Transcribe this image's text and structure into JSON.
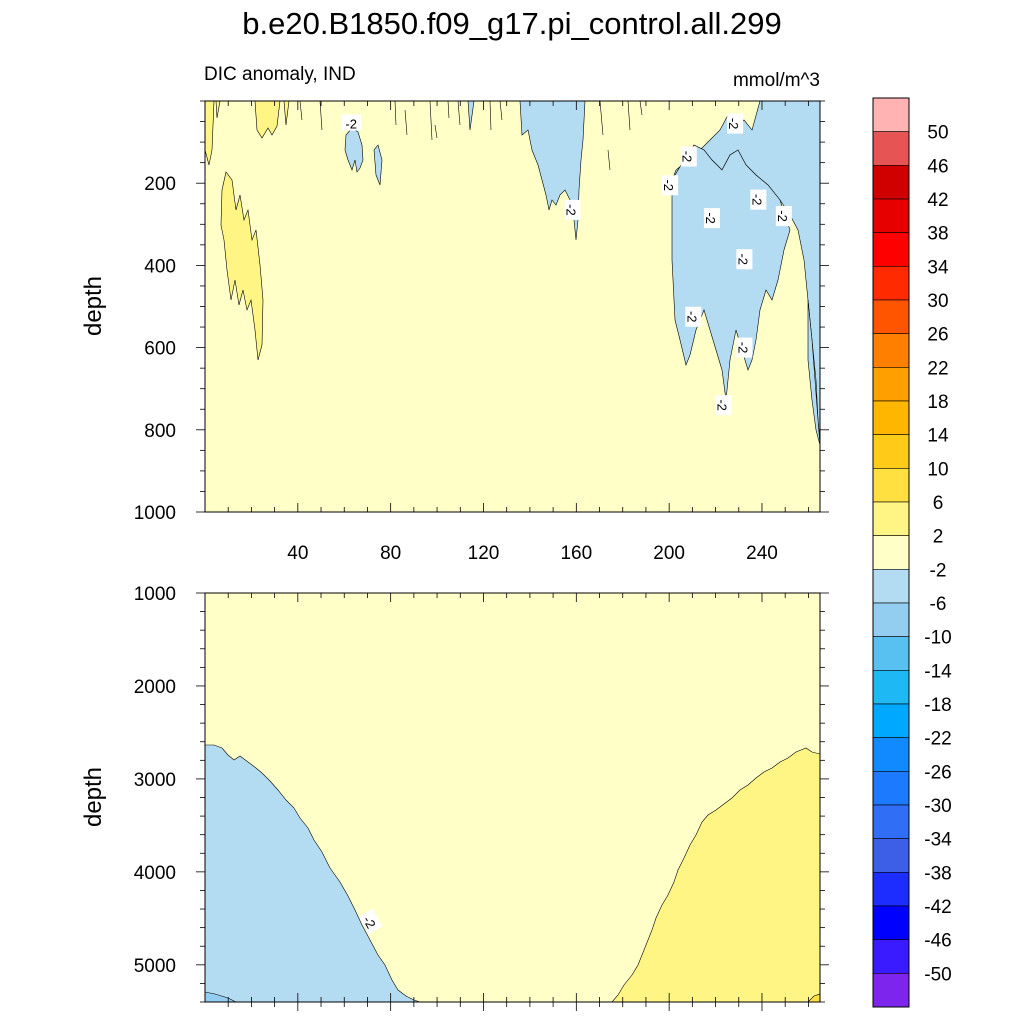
{
  "title": "b.e20.B1850.f09_g17.pi_control.all.299",
  "subtitle_left": "DIC anomaly, IND",
  "units": "mmol/m^3",
  "chart_data": [
    {
      "type": "contour",
      "panel": "upper",
      "ylabel": "depth",
      "xlim": [
        0,
        265
      ],
      "ylim": [
        1000,
        0
      ],
      "y_reversed": true,
      "x_ticks": [
        40,
        80,
        120,
        160,
        200,
        240
      ],
      "y_ticks": [
        200,
        400,
        600,
        800,
        1000
      ],
      "background_range": [
        -2,
        2
      ],
      "regions": [
        {
          "range": [
            -6,
            -2
          ],
          "color": "#b3dcf2",
          "x": [
            55,
            75
          ],
          "ydepth": [
            0,
            200
          ]
        },
        {
          "range": [
            -6,
            -2
          ],
          "color": "#b3dcf2",
          "x": [
            135,
            160
          ],
          "ydepth": [
            0,
            350
          ]
        },
        {
          "range": [
            -6,
            -2
          ],
          "color": "#b3dcf2",
          "x": [
            200,
            265
          ],
          "ydepth": [
            0,
            840
          ]
        },
        {
          "range": [
            2,
            6
          ],
          "color": "#fff584",
          "x": [
            0,
            25
          ],
          "ydepth": [
            0,
            620
          ]
        },
        {
          "range": [
            2,
            6
          ],
          "color": "#fff584",
          "x": [
            25,
            45
          ],
          "ydepth": [
            0,
            80
          ]
        }
      ],
      "contour_labels": [
        {
          "text": "-2",
          "x": 63,
          "y": 55
        },
        {
          "text": "-2",
          "x": 158,
          "y": 265
        },
        {
          "text": "-2",
          "x": 200,
          "y": 205
        },
        {
          "text": "-2",
          "x": 208,
          "y": 135
        },
        {
          "text": "-2",
          "x": 218,
          "y": 285
        },
        {
          "text": "-2",
          "x": 228,
          "y": 55
        },
        {
          "text": "-2",
          "x": 238,
          "y": 240
        },
        {
          "text": "-2",
          "x": 232,
          "y": 385
        },
        {
          "text": "-2",
          "x": 249,
          "y": 280
        },
        {
          "text": "-2",
          "x": 210,
          "y": 525
        },
        {
          "text": "-2",
          "x": 232,
          "y": 600
        },
        {
          "text": "-2",
          "x": 223,
          "y": 740
        }
      ]
    },
    {
      "type": "contour",
      "panel": "lower",
      "ylabel": "depth",
      "xlim": [
        0,
        265
      ],
      "ylim": [
        5400,
        1000
      ],
      "y_reversed": true,
      "y_ticks": [
        1000,
        2000,
        3000,
        4000,
        5000
      ],
      "background_range": [
        -2,
        2
      ],
      "regions": [
        {
          "range": [
            -6,
            -2
          ],
          "color": "#b3dcf2",
          "side": "left",
          "boundary_top": 2600
        },
        {
          "range": [
            2,
            6
          ],
          "color": "#fff584",
          "side": "right",
          "boundary_top": 2700
        }
      ],
      "contour_labels": [
        {
          "text": "-2",
          "x": 71,
          "y": 4540
        }
      ]
    }
  ],
  "colorbar": {
    "labels": [
      "50",
      "46",
      "42",
      "38",
      "34",
      "30",
      "26",
      "22",
      "18",
      "14",
      "10",
      "6",
      "2",
      "-2",
      "-6",
      "-10",
      "-14",
      "-18",
      "-22",
      "-26",
      "-30",
      "-34",
      "-38",
      "-42",
      "-46",
      "-50"
    ],
    "colors": [
      "#ffb3b3",
      "#e65454",
      "#d10000",
      "#e60000",
      "#ff0000",
      "#ff2a00",
      "#ff5500",
      "#ff7f00",
      "#ff9f00",
      "#ffb600",
      "#ffcb19",
      "#ffe040",
      "#fff584",
      "#ffffc8",
      "#b3dcf2",
      "#93cdef",
      "#59c0f2",
      "#1eb8f5",
      "#00a8ff",
      "#118aff",
      "#1c7aff",
      "#306ef5",
      "#3d5ee6",
      "#1d2cff",
      "#0000ff",
      "#3a1aff",
      "#7e25ed"
    ]
  }
}
